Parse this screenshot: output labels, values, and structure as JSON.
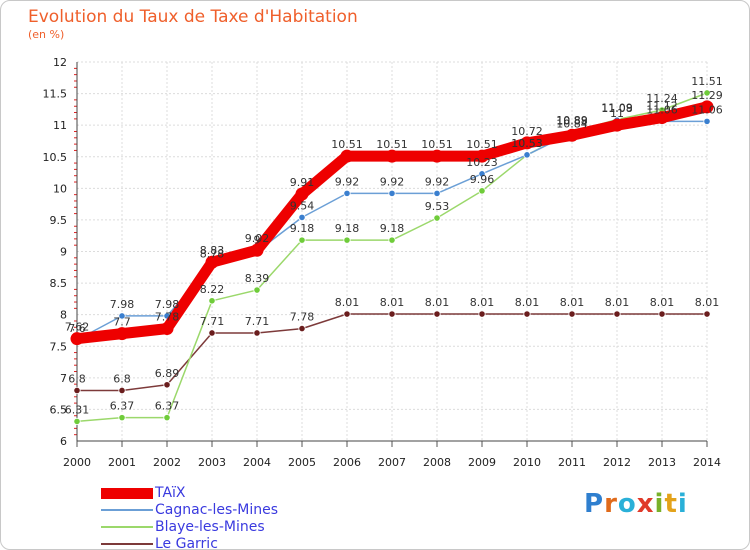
{
  "title": "Evolution du Taux de Taxe d'Habitation",
  "subtitle": "(en %)",
  "brand": {
    "letters": [
      {
        "ch": "P",
        "color": "#2f7fcf"
      },
      {
        "ch": "r",
        "color": "#e06a1a"
      },
      {
        "ch": "o",
        "color": "#2ab0d8"
      },
      {
        "ch": "x",
        "color": "#e03a2a"
      },
      {
        "ch": "i",
        "color": "#79b12a"
      },
      {
        "ch": "t",
        "color": "#e3a21a"
      },
      {
        "ch": "i",
        "color": "#2ab0d8"
      }
    ]
  },
  "chart_data": {
    "type": "line",
    "title": "Evolution du Taux de Taxe d'Habitation",
    "ylabel": "(en %)",
    "xlabel": "",
    "x": [
      "2000",
      "2001",
      "2002",
      "2003",
      "2004",
      "2005",
      "2006",
      "2007",
      "2008",
      "2009",
      "2010",
      "2011",
      "2012",
      "2013",
      "2014"
    ],
    "ylim": [
      6,
      12
    ],
    "yticks": [
      "6",
      "6.5",
      "7",
      "7.5",
      "8",
      "8.5",
      "9",
      "9.5",
      "10",
      "10.5",
      "11",
      "11.5",
      "12"
    ],
    "grid": true,
    "legend": "bottom-left",
    "series": [
      {
        "name": "TAïX",
        "color": "#ee0000",
        "values": [
          7.62,
          7.7,
          7.78,
          8.83,
          9.02,
          9.91,
          10.51,
          10.51,
          10.51,
          10.51,
          10.72,
          10.84,
          11.0,
          11.12,
          11.29
        ],
        "labels": [
          "7.62",
          "7.7",
          "7.78",
          "8.83",
          "9.02",
          "9.91",
          "10.51",
          "10.51",
          "10.51",
          "10.51",
          "10.72",
          "10.84",
          "11",
          "11.12",
          "11.29"
        ]
      },
      {
        "name": "Cagnac-les-Mines",
        "color": "#6b9fd6",
        "values": [
          7.6,
          7.98,
          7.98,
          8.78,
          9.0,
          9.54,
          9.92,
          9.92,
          9.92,
          10.23,
          10.53,
          10.88,
          11.08,
          11.06,
          11.06
        ],
        "labels": [
          "7.6",
          "7.98",
          "7.98",
          "8.78",
          "9",
          "9.54",
          "9.92",
          "9.92",
          "9.92",
          "10.23",
          "10.53",
          "10.88",
          "11.08",
          "11.06",
          "11.06"
        ]
      },
      {
        "name": "Blaye-les-Mines",
        "color": "#9bd86b",
        "values": [
          6.31,
          6.37,
          6.37,
          8.22,
          8.39,
          9.18,
          9.18,
          9.18,
          9.53,
          9.96,
          10.53,
          10.89,
          11.09,
          11.24,
          11.51
        ],
        "labels": [
          "6.31",
          "6.37",
          "6.37",
          "8.22",
          "8.39",
          "9.18",
          "9.18",
          "9.18",
          "9.53",
          "9.96",
          "10.53",
          "10.89",
          "11.09",
          "11.24",
          "11.51"
        ]
      },
      {
        "name": "Le Garric",
        "color": "#7d3a3a",
        "values": [
          6.8,
          6.8,
          6.89,
          7.71,
          7.71,
          7.78,
          8.01,
          8.01,
          8.01,
          8.01,
          8.01,
          8.01,
          8.01,
          8.01,
          8.01
        ],
        "labels": [
          "6.8",
          "6.8",
          "6.89",
          "7.71",
          "7.71",
          "7.78",
          "8.01",
          "8.01",
          "8.01",
          "8.01",
          "8.01",
          "8.01",
          "8.01",
          "8.01",
          "8.01"
        ]
      }
    ]
  }
}
